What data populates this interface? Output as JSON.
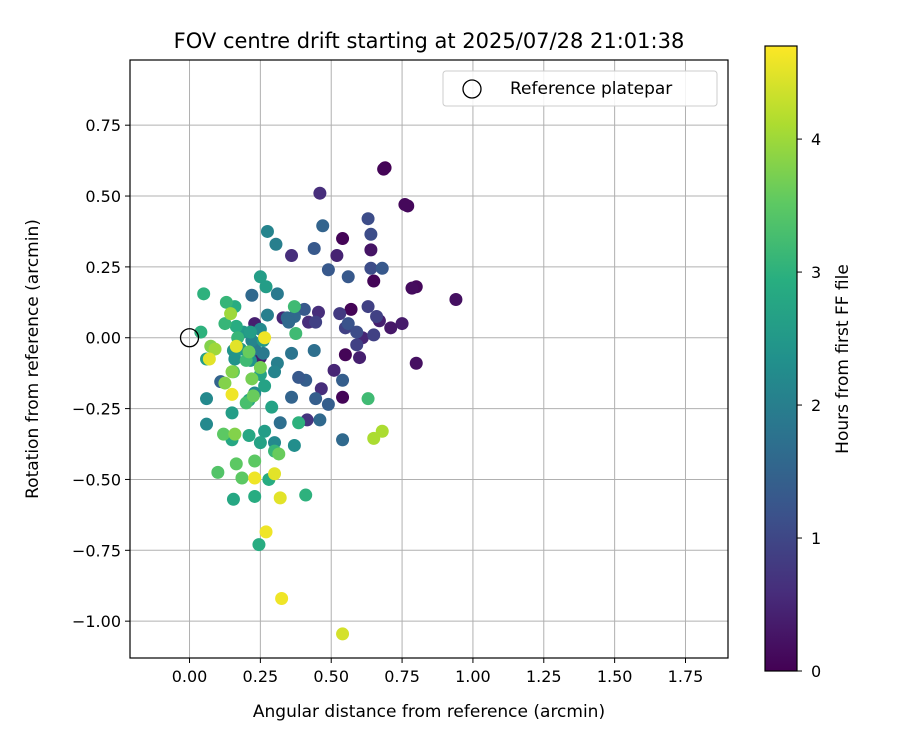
{
  "chart_data": {
    "type": "scatter",
    "title": "FOV centre drift starting at 2025/07/28 21:01:38",
    "xlabel": "Angular distance from reference (arcmin)",
    "ylabel": "Rotation from reference (arcmin)",
    "xlim": [
      -0.21,
      1.9
    ],
    "ylim": [
      -1.13,
      0.98
    ],
    "xticks": [
      0.0,
      0.25,
      0.5,
      0.75,
      1.0,
      1.25,
      1.5,
      1.75
    ],
    "xtick_labels": [
      "0.00",
      "0.25",
      "0.50",
      "0.75",
      "1.00",
      "1.25",
      "1.50",
      "1.75"
    ],
    "yticks": [
      0.75,
      0.5,
      0.25,
      0.0,
      -0.25,
      -0.5,
      -0.75,
      -1.0
    ],
    "ytick_labels": [
      "0.75",
      "0.50",
      "0.25",
      "0.00",
      "−0.25",
      "−0.50",
      "−0.75",
      "−1.00"
    ],
    "grid": true,
    "legend": {
      "position": "top-right",
      "entries": [
        "Reference platepar"
      ]
    },
    "reference_point": {
      "x": 0.0,
      "y": 0.0
    },
    "colorbar": {
      "label": "Hours from first FF file",
      "range": [
        0,
        4.7
      ],
      "ticks": [
        0,
        1,
        2,
        3,
        4
      ],
      "tick_labels": [
        "0",
        "1",
        "2",
        "3",
        "4"
      ],
      "colormap": "viridis"
    },
    "points": [
      {
        "x": 0.69,
        "y": 0.6,
        "c": 0.0
      },
      {
        "x": 0.685,
        "y": 0.595,
        "c": 0.05
      },
      {
        "x": 0.77,
        "y": 0.465,
        "c": 0.1
      },
      {
        "x": 0.76,
        "y": 0.47,
        "c": 0.1
      },
      {
        "x": 0.8,
        "y": 0.18,
        "c": 0.1
      },
      {
        "x": 0.785,
        "y": 0.175,
        "c": 0.15
      },
      {
        "x": 0.94,
        "y": 0.135,
        "c": 0.2
      },
      {
        "x": 0.8,
        "y": -0.09,
        "c": 0.2
      },
      {
        "x": 0.54,
        "y": 0.35,
        "c": 0.05
      },
      {
        "x": 0.65,
        "y": 0.2,
        "c": 0.05
      },
      {
        "x": 0.57,
        "y": 0.1,
        "c": 0.05
      },
      {
        "x": 0.55,
        "y": -0.06,
        "c": 0.05
      },
      {
        "x": 0.54,
        "y": -0.21,
        "c": 0.05
      },
      {
        "x": 0.64,
        "y": 0.31,
        "c": 0.25
      },
      {
        "x": 0.71,
        "y": 0.035,
        "c": 0.3
      },
      {
        "x": 0.75,
        "y": 0.05,
        "c": 0.35
      },
      {
        "x": 0.67,
        "y": 0.06,
        "c": 0.4
      },
      {
        "x": 0.6,
        "y": -0.07,
        "c": 0.4
      },
      {
        "x": 0.52,
        "y": 0.29,
        "c": 0.45
      },
      {
        "x": 0.61,
        "y": 0.0,
        "c": 0.5
      },
      {
        "x": 0.51,
        "y": -0.115,
        "c": 0.5
      },
      {
        "x": 0.46,
        "y": 0.51,
        "c": 0.6
      },
      {
        "x": 0.36,
        "y": 0.29,
        "c": 0.6
      },
      {
        "x": 0.455,
        "y": 0.09,
        "c": 0.6
      },
      {
        "x": 0.42,
        "y": 0.055,
        "c": 0.6
      },
      {
        "x": 0.465,
        "y": -0.18,
        "c": 0.6
      },
      {
        "x": 0.415,
        "y": -0.29,
        "c": 0.7
      },
      {
        "x": 0.33,
        "y": 0.07,
        "c": 0.5
      },
      {
        "x": 0.23,
        "y": 0.05,
        "c": 0.4
      },
      {
        "x": 0.25,
        "y": -0.07,
        "c": 0.4
      },
      {
        "x": 0.63,
        "y": 0.11,
        "c": 0.9
      },
      {
        "x": 0.66,
        "y": 0.075,
        "c": 0.9
      },
      {
        "x": 0.65,
        "y": 0.01,
        "c": 0.9
      },
      {
        "x": 0.59,
        "y": -0.025,
        "c": 0.9
      },
      {
        "x": 0.55,
        "y": 0.035,
        "c": 0.9
      },
      {
        "x": 0.53,
        "y": 0.085,
        "c": 0.8
      },
      {
        "x": 0.445,
        "y": 0.055,
        "c": 0.9
      },
      {
        "x": 0.63,
        "y": 0.42,
        "c": 1.1
      },
      {
        "x": 0.64,
        "y": 0.365,
        "c": 1.1
      },
      {
        "x": 0.64,
        "y": 0.245,
        "c": 1.1
      },
      {
        "x": 0.68,
        "y": 0.245,
        "c": 1.3
      },
      {
        "x": 0.56,
        "y": 0.215,
        "c": 1.3
      },
      {
        "x": 0.44,
        "y": 0.315,
        "c": 1.3
      },
      {
        "x": 0.49,
        "y": 0.24,
        "c": 1.3
      },
      {
        "x": 0.47,
        "y": 0.395,
        "c": 1.5
      },
      {
        "x": 0.56,
        "y": 0.05,
        "c": 1.2
      },
      {
        "x": 0.59,
        "y": 0.02,
        "c": 1.1
      },
      {
        "x": 0.54,
        "y": -0.15,
        "c": 1.4
      },
      {
        "x": 0.54,
        "y": -0.36,
        "c": 1.6
      },
      {
        "x": 0.49,
        "y": -0.235,
        "c": 1.4
      },
      {
        "x": 0.445,
        "y": -0.215,
        "c": 1.4
      },
      {
        "x": 0.405,
        "y": 0.1,
        "c": 1.3
      },
      {
        "x": 0.41,
        "y": -0.15,
        "c": 1.4
      },
      {
        "x": 0.385,
        "y": -0.14,
        "c": 1.3
      },
      {
        "x": 0.36,
        "y": -0.21,
        "c": 1.5
      },
      {
        "x": 0.37,
        "y": 0.075,
        "c": 1.6
      },
      {
        "x": 0.345,
        "y": 0.07,
        "c": 1.6
      },
      {
        "x": 0.35,
        "y": 0.055,
        "c": 1.6
      },
      {
        "x": 0.44,
        "y": -0.045,
        "c": 1.7
      },
      {
        "x": 0.36,
        "y": -0.055,
        "c": 1.8
      },
      {
        "x": 0.32,
        "y": -0.3,
        "c": 1.7
      },
      {
        "x": 0.46,
        "y": -0.29,
        "c": 1.6
      },
      {
        "x": 0.11,
        "y": -0.155,
        "c": 1.5
      },
      {
        "x": 0.22,
        "y": 0.15,
        "c": 1.6
      },
      {
        "x": 0.31,
        "y": 0.155,
        "c": 1.9
      },
      {
        "x": 0.305,
        "y": 0.33,
        "c": 2.0
      },
      {
        "x": 0.275,
        "y": 0.375,
        "c": 2.1
      },
      {
        "x": 0.275,
        "y": 0.08,
        "c": 2.0
      },
      {
        "x": 0.23,
        "y": -0.04,
        "c": 1.9
      },
      {
        "x": 0.26,
        "y": -0.055,
        "c": 1.9
      },
      {
        "x": 0.31,
        "y": -0.09,
        "c": 2.0
      },
      {
        "x": 0.3,
        "y": -0.12,
        "c": 2.1
      },
      {
        "x": 0.22,
        "y": -0.01,
        "c": 2.1
      },
      {
        "x": 0.25,
        "y": 0.03,
        "c": 2.2
      },
      {
        "x": 0.06,
        "y": -0.215,
        "c": 2.2
      },
      {
        "x": 0.06,
        "y": -0.305,
        "c": 2.2
      },
      {
        "x": 0.23,
        "y": -0.195,
        "c": 2.2
      },
      {
        "x": 0.3,
        "y": -0.37,
        "c": 2.2
      },
      {
        "x": 0.37,
        "y": -0.38,
        "c": 2.3
      },
      {
        "x": 0.16,
        "y": -0.075,
        "c": 2.4
      },
      {
        "x": 0.155,
        "y": -0.045,
        "c": 2.4
      },
      {
        "x": 0.215,
        "y": -0.08,
        "c": 2.4
      },
      {
        "x": 0.18,
        "y": -0.04,
        "c": 2.5
      },
      {
        "x": 0.26,
        "y": -0.01,
        "c": 2.5
      },
      {
        "x": 0.19,
        "y": 0.02,
        "c": 2.5
      },
      {
        "x": 0.215,
        "y": 0.02,
        "c": 2.6
      },
      {
        "x": 0.25,
        "y": 0.215,
        "c": 2.6
      },
      {
        "x": 0.27,
        "y": 0.18,
        "c": 2.6
      },
      {
        "x": 0.06,
        "y": -0.075,
        "c": 2.6
      },
      {
        "x": 0.15,
        "y": -0.265,
        "c": 2.6
      },
      {
        "x": 0.265,
        "y": -0.33,
        "c": 2.6
      },
      {
        "x": 0.25,
        "y": -0.37,
        "c": 2.7
      },
      {
        "x": 0.29,
        "y": -0.245,
        "c": 2.7
      },
      {
        "x": 0.25,
        "y": -0.13,
        "c": 2.7
      },
      {
        "x": 0.265,
        "y": -0.17,
        "c": 2.7
      },
      {
        "x": 0.21,
        "y": -0.22,
        "c": 2.7
      },
      {
        "x": 0.15,
        "y": -0.36,
        "c": 2.8
      },
      {
        "x": 0.155,
        "y": -0.57,
        "c": 2.8
      },
      {
        "x": 0.245,
        "y": -0.73,
        "c": 2.9
      },
      {
        "x": 0.21,
        "y": -0.345,
        "c": 2.8
      },
      {
        "x": 0.23,
        "y": -0.56,
        "c": 2.9
      },
      {
        "x": 0.28,
        "y": -0.5,
        "c": 2.9
      },
      {
        "x": 0.165,
        "y": 0.04,
        "c": 2.9
      },
      {
        "x": 0.16,
        "y": 0.11,
        "c": 2.9
      },
      {
        "x": 0.04,
        "y": 0.02,
        "c": 3.0
      },
      {
        "x": 0.05,
        "y": 0.155,
        "c": 3.0
      },
      {
        "x": 0.13,
        "y": 0.125,
        "c": 3.1
      },
      {
        "x": 0.125,
        "y": 0.05,
        "c": 3.1
      },
      {
        "x": 0.17,
        "y": 0.0,
        "c": 3.1
      },
      {
        "x": 0.2,
        "y": -0.08,
        "c": 3.2
      },
      {
        "x": 0.3,
        "y": -0.4,
        "c": 3.1
      },
      {
        "x": 0.385,
        "y": -0.3,
        "c": 3.0
      },
      {
        "x": 0.41,
        "y": -0.555,
        "c": 3.0
      },
      {
        "x": 0.37,
        "y": 0.11,
        "c": 3.2
      },
      {
        "x": 0.375,
        "y": 0.015,
        "c": 3.2
      },
      {
        "x": 0.63,
        "y": -0.215,
        "c": 3.2
      },
      {
        "x": 0.2,
        "y": -0.23,
        "c": 3.3
      },
      {
        "x": 0.155,
        "y": -0.12,
        "c": 3.4
      },
      {
        "x": 0.165,
        "y": -0.445,
        "c": 3.5
      },
      {
        "x": 0.185,
        "y": -0.495,
        "c": 3.5
      },
      {
        "x": 0.1,
        "y": -0.475,
        "c": 3.4
      },
      {
        "x": 0.12,
        "y": -0.34,
        "c": 3.5
      },
      {
        "x": 0.23,
        "y": -0.435,
        "c": 3.5
      },
      {
        "x": 0.315,
        "y": -0.41,
        "c": 3.6
      },
      {
        "x": 0.225,
        "y": -0.205,
        "c": 3.6
      },
      {
        "x": 0.21,
        "y": -0.05,
        "c": 3.6
      },
      {
        "x": 0.25,
        "y": -0.105,
        "c": 3.7
      },
      {
        "x": 0.22,
        "y": -0.145,
        "c": 3.7
      },
      {
        "x": 0.075,
        "y": -0.03,
        "c": 3.8
      },
      {
        "x": 0.125,
        "y": -0.16,
        "c": 3.8
      },
      {
        "x": 0.15,
        "y": -0.12,
        "c": 3.8
      },
      {
        "x": 0.09,
        "y": -0.04,
        "c": 4.0
      },
      {
        "x": 0.145,
        "y": 0.085,
        "c": 4.0
      },
      {
        "x": 0.16,
        "y": -0.34,
        "c": 3.8
      },
      {
        "x": 0.65,
        "y": -0.355,
        "c": 4.1
      },
      {
        "x": 0.68,
        "y": -0.33,
        "c": 4.1
      },
      {
        "x": 0.07,
        "y": -0.075,
        "c": 4.5
      },
      {
        "x": 0.165,
        "y": -0.03,
        "c": 4.5
      },
      {
        "x": 0.15,
        "y": -0.2,
        "c": 4.6
      },
      {
        "x": 0.265,
        "y": 0.0,
        "c": 4.6
      },
      {
        "x": 0.23,
        "y": -0.495,
        "c": 4.6
      },
      {
        "x": 0.3,
        "y": -0.48,
        "c": 4.5
      },
      {
        "x": 0.27,
        "y": -0.685,
        "c": 4.6
      },
      {
        "x": 0.32,
        "y": -0.565,
        "c": 4.5
      },
      {
        "x": 0.325,
        "y": -0.92,
        "c": 4.6
      },
      {
        "x": 0.54,
        "y": -1.045,
        "c": 4.4
      }
    ]
  }
}
